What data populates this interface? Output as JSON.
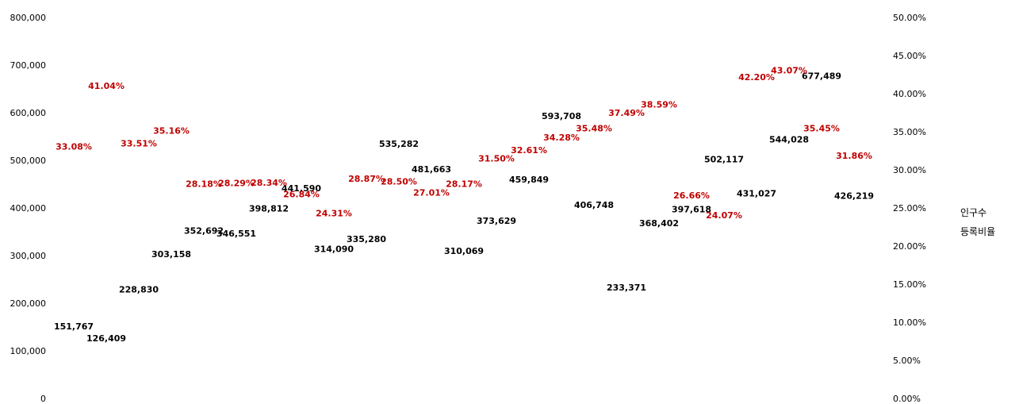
{
  "colors": {
    "population": "#000000",
    "ratio": "#c00000"
  },
  "chart_data": {
    "type": "scatter",
    "grid": false,
    "legend_position": "right",
    "y_left": {
      "range": [
        0,
        800000
      ],
      "ticks": [
        "0",
        "100,000",
        "200,000",
        "300,000",
        "400,000",
        "500,000",
        "600,000",
        "700,000",
        "800,000"
      ]
    },
    "y_right": {
      "range": [
        0,
        0.5
      ],
      "ticks": [
        "0.00%",
        "5.00%",
        "10.00%",
        "15.00%",
        "20.00%",
        "25.00%",
        "30.00%",
        "35.00%",
        "40.00%",
        "45.00%",
        "50.00%"
      ]
    },
    "series": [
      {
        "name": "인구수",
        "axis": "left",
        "values": [
          151767,
          126409,
          228830,
          303158,
          352692,
          346551,
          398812,
          441590,
          314090,
          335280,
          535282,
          481663,
          310069,
          373629,
          459849,
          593708,
          406748,
          233371,
          368402,
          397618,
          502117,
          431027,
          544028,
          677489,
          426219
        ],
        "labels": [
          "151,767",
          "126,409",
          "228,830",
          "303,158",
          "352,692",
          "346,551",
          "398,812",
          "441,590",
          "314,090",
          "335,280",
          "535,282",
          "481,663",
          "310,069",
          "373,629",
          "459,849",
          "593,708",
          "406,748",
          "233,371",
          "368,402",
          "397,618",
          "502,117",
          "431,027",
          "544,028",
          "677,489",
          "426,219"
        ]
      },
      {
        "name": "등록비율",
        "axis": "right",
        "values": [
          0.3308,
          0.4104,
          0.3351,
          0.3516,
          0.2818,
          0.2829,
          0.2834,
          0.2684,
          0.2431,
          0.2887,
          0.285,
          0.2701,
          0.2817,
          0.315,
          0.3261,
          0.3428,
          0.3548,
          0.3749,
          0.3859,
          0.2666,
          0.2407,
          0.422,
          0.4307,
          0.3545,
          0.3186
        ],
        "labels": [
          "33.08%",
          "41.04%",
          "33.51%",
          "35.16%",
          "28.18%",
          "28.29%",
          "28.34%",
          "26.84%",
          "24.31%",
          "28.87%",
          "28.50%",
          "27.01%",
          "28.17%",
          "31.50%",
          "32.61%",
          "34.28%",
          "35.48%",
          "37.49%",
          "38.59%",
          "26.66%",
          "24.07%",
          "42.20%",
          "43.07%",
          "35.45%",
          "31.86%"
        ]
      }
    ]
  }
}
